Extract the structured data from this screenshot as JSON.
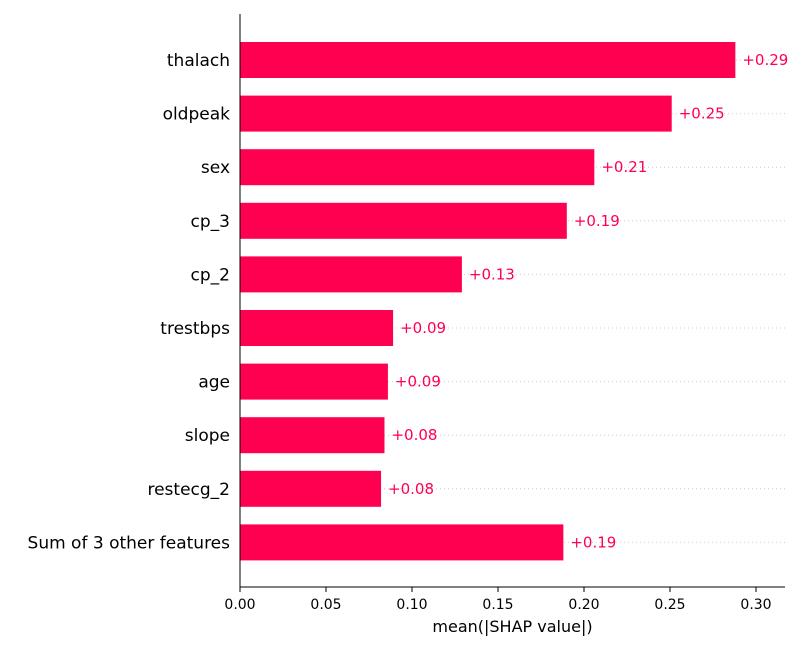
{
  "chart_data": {
    "type": "bar",
    "orientation": "horizontal",
    "categories": [
      "thalach",
      "oldpeak",
      "sex",
      "cp_3",
      "cp_2",
      "trestbps",
      "age",
      "slope",
      "restecg_2",
      "Sum of 3 other features"
    ],
    "values": [
      0.288,
      0.251,
      0.206,
      0.19,
      0.129,
      0.089,
      0.086,
      0.084,
      0.082,
      0.188
    ],
    "value_labels": [
      "+0.29",
      "+0.25",
      "+0.21",
      "+0.19",
      "+0.13",
      "+0.09",
      "+0.09",
      "+0.08",
      "+0.08",
      "+0.19"
    ],
    "xlabel": "mean(|SHAP value|)",
    "xticks": [
      "0.00",
      "0.05",
      "0.10",
      "0.15",
      "0.20",
      "0.25",
      "0.30"
    ],
    "xlim": [
      0,
      0.318
    ],
    "bar_color": "#ff0051",
    "grid": "dotted row guides"
  }
}
